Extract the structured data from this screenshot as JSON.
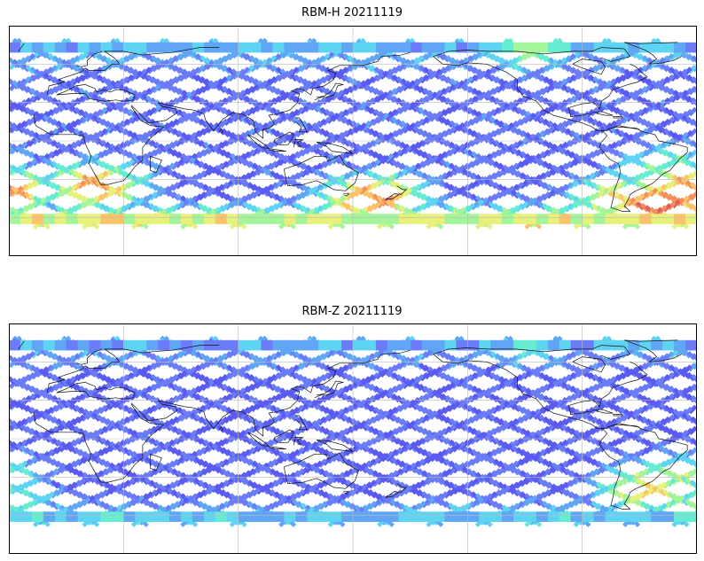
{
  "panels": [
    {
      "title": "RBM-H 20211119",
      "palette": [
        "#5b5bf2",
        "#6a7cf7",
        "#61a6f5",
        "#5fd4f2",
        "#66ecd0",
        "#a4f59a",
        "#e6f07a",
        "#fbc46a",
        "#f58e58",
        "#e06060"
      ],
      "mid_lat_level": 0.12,
      "north_level": 0.22,
      "south_level": 0.62,
      "hotspots": [
        {
          "lon": -50,
          "lat": -50,
          "level": 0.95
        },
        {
          "lon": -35,
          "lat": -40,
          "level": 0.9
        },
        {
          "lon": -70,
          "lat": -45,
          "level": 0.7
        },
        {
          "lon": 15,
          "lat": -35,
          "level": 0.8
        },
        {
          "lon": 160,
          "lat": -45,
          "level": 0.85
        },
        {
          "lon": -120,
          "lat": 72,
          "level": 0.55
        },
        {
          "lon": -45,
          "lat": -20,
          "level": 0.5
        }
      ]
    },
    {
      "title": "RBM-Z 20211119",
      "palette": [
        "#5b5bf2",
        "#6a7cf7",
        "#61a6f5",
        "#5fd4f2",
        "#66ecd0",
        "#a4f59a",
        "#e6f07a",
        "#fbc46a",
        "#f58e58",
        "#e06060"
      ],
      "mid_lat_level": 0.1,
      "north_level": 0.18,
      "south_level": 0.32,
      "hotspots": [
        {
          "lon": -55,
          "lat": -40,
          "level": 0.72
        },
        {
          "lon": -40,
          "lat": -30,
          "level": 0.55
        },
        {
          "lon": -30,
          "lat": -50,
          "level": 0.5
        },
        {
          "lon": -120,
          "lat": 70,
          "level": 0.4
        }
      ]
    }
  ],
  "map": {
    "lon_range": [
      -180,
      180
    ],
    "lat_range": [
      -90,
      90
    ],
    "central_longitude": 150,
    "graticule_lon_step": 60,
    "graticule_lat_step": 30,
    "swath_lat_range": [
      -67,
      77
    ]
  }
}
